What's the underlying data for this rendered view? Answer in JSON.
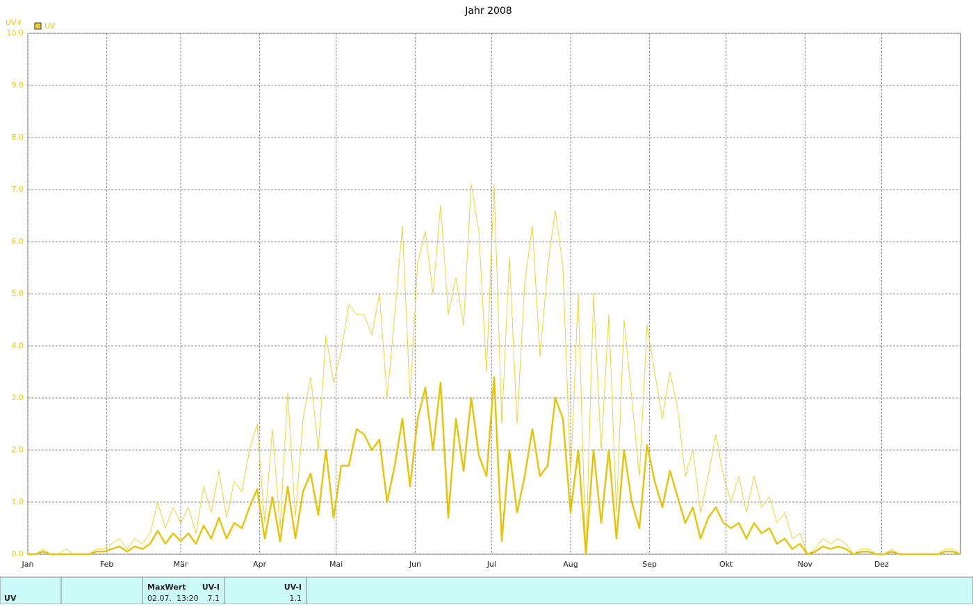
{
  "chart_data": {
    "type": "line",
    "title": "Jahr 2008",
    "y_label": "UV-I",
    "x": [
      0,
      3,
      6,
      9,
      12,
      15,
      18,
      21,
      24,
      27,
      30,
      33,
      36,
      39,
      42,
      45,
      48,
      51,
      54,
      57,
      60,
      63,
      66,
      69,
      72,
      75,
      78,
      81,
      84,
      87,
      90,
      93,
      96,
      99,
      102,
      105,
      108,
      111,
      114,
      117,
      120,
      123,
      126,
      129,
      132,
      135,
      138,
      141,
      144,
      147,
      150,
      153,
      156,
      159,
      162,
      165,
      168,
      171,
      174,
      177,
      180,
      183,
      186,
      189,
      192,
      195,
      198,
      201,
      204,
      207,
      210,
      213,
      216,
      219,
      222,
      225,
      228,
      231,
      234,
      237,
      240,
      243,
      246,
      249,
      252,
      255,
      258,
      261,
      264,
      267,
      270,
      273,
      276,
      279,
      282,
      285,
      288,
      291,
      294,
      297,
      300,
      303,
      306,
      309,
      312,
      315,
      318,
      321,
      324,
      327,
      330,
      333,
      336,
      339,
      342,
      345,
      348,
      351,
      354,
      357,
      360,
      363,
      366
    ],
    "series": [
      {
        "name": "UV",
        "color": "#ecd23a",
        "width": 1,
        "values": [
          0,
          0,
          0.1,
          0,
          0,
          0.1,
          0,
          0,
          0,
          0.1,
          0.1,
          0.2,
          0.3,
          0.1,
          0.3,
          0.2,
          0.4,
          1.0,
          0.5,
          0.9,
          0.6,
          0.9,
          0.4,
          1.3,
          0.8,
          1.6,
          0.7,
          1.4,
          1.2,
          2.0,
          2.5,
          0.6,
          2.4,
          0.5,
          3.1,
          0.7,
          2.6,
          3.4,
          2.0,
          4.2,
          3.3,
          3.9,
          4.8,
          4.6,
          4.6,
          4.2,
          5.0,
          3.0,
          4.6,
          6.3,
          3.0,
          5.6,
          6.2,
          5.0,
          6.7,
          4.6,
          5.3,
          4.4,
          7.1,
          6.2,
          3.5,
          7.1,
          2.5,
          5.7,
          2.5,
          5.2,
          6.3,
          3.8,
          5.5,
          6.6,
          5.5,
          1.5,
          5.0,
          0.0,
          5.0,
          2.0,
          4.6,
          0.8,
          4.5,
          3.0,
          1.5,
          4.4,
          3.5,
          2.6,
          3.5,
          2.8,
          1.5,
          2.0,
          0.8,
          1.5,
          2.3,
          1.5,
          1.0,
          1.5,
          0.8,
          1.5,
          0.9,
          1.1,
          0.6,
          0.8,
          0.3,
          0.4,
          0.0,
          0.1,
          0.3,
          0.2,
          0.3,
          0.2,
          0,
          0.1,
          0.1,
          0,
          0,
          0.1,
          0,
          0,
          0,
          0,
          0,
          0,
          0.1,
          0.1,
          0
        ]
      },
      {
        "color": "#e5c30f",
        "width": 2.5,
        "values": [
          0,
          0,
          0.05,
          0,
          0,
          0,
          0,
          0,
          0,
          0.05,
          0.05,
          0.1,
          0.15,
          0.05,
          0.15,
          0.1,
          0.2,
          0.45,
          0.2,
          0.4,
          0.25,
          0.4,
          0.2,
          0.55,
          0.3,
          0.7,
          0.3,
          0.6,
          0.5,
          0.9,
          1.25,
          0.3,
          1.1,
          0.25,
          1.3,
          0.3,
          1.2,
          1.55,
          0.75,
          2.0,
          0.7,
          1.7,
          1.7,
          2.4,
          2.3,
          2.0,
          2.2,
          1.0,
          1.7,
          2.6,
          1.3,
          2.6,
          3.2,
          2.0,
          3.3,
          0.7,
          2.6,
          1.6,
          3.0,
          1.9,
          1.5,
          3.4,
          0.25,
          2.0,
          0.8,
          1.5,
          2.4,
          1.5,
          1.7,
          3.0,
          2.6,
          0.8,
          2.0,
          0.0,
          2.0,
          0.6,
          2.0,
          0.3,
          2.0,
          1.0,
          0.5,
          2.1,
          1.4,
          0.9,
          1.6,
          1.1,
          0.6,
          0.9,
          0.3,
          0.7,
          0.9,
          0.6,
          0.5,
          0.6,
          0.3,
          0.6,
          0.4,
          0.5,
          0.2,
          0.3,
          0.1,
          0.2,
          0.0,
          0.05,
          0.15,
          0.1,
          0.15,
          0.1,
          0,
          0.05,
          0.05,
          0,
          0,
          0.05,
          0,
          0,
          0,
          0,
          0,
          0,
          0.05,
          0.05,
          0
        ]
      }
    ],
    "xlim": [
      0,
      366
    ],
    "xticks": [
      {
        "value": 0,
        "label": "Jan"
      },
      {
        "value": 31,
        "label": "Feb"
      },
      {
        "value": 60,
        "label": "Mär"
      },
      {
        "value": 91,
        "label": "Apr"
      },
      {
        "value": 121,
        "label": "Mai"
      },
      {
        "value": 152,
        "label": "Jun"
      },
      {
        "value": 182,
        "label": "Jul"
      },
      {
        "value": 213,
        "label": "Aug"
      },
      {
        "value": 244,
        "label": "Sep"
      },
      {
        "value": 274,
        "label": "Okt"
      },
      {
        "value": 305,
        "label": "Nov"
      },
      {
        "value": 335,
        "label": "Dez"
      }
    ],
    "ylim": [
      0,
      10
    ],
    "yticks": [
      {
        "value": 0,
        "label": "0.0"
      },
      {
        "value": 1,
        "label": "1.0"
      },
      {
        "value": 2,
        "label": "2.0"
      },
      {
        "value": 3,
        "label": "3.0"
      },
      {
        "value": 4,
        "label": "4.0"
      },
      {
        "value": 5,
        "label": "5.0"
      },
      {
        "value": 6,
        "label": "6.0"
      },
      {
        "value": 7,
        "label": "7.0"
      },
      {
        "value": 8,
        "label": "8.0"
      },
      {
        "value": 9,
        "label": "9.0"
      },
      {
        "value": 10,
        "label": "10.0"
      }
    ],
    "grid": true,
    "legend": "top-left"
  },
  "table": {
    "name": "UV",
    "max_header": "MaxWert",
    "max_unit": "UV-I",
    "max_time": "02.07.  13:20",
    "max_value": "7.1",
    "mean_unit": "UV-I",
    "mean_value": "1.1"
  }
}
